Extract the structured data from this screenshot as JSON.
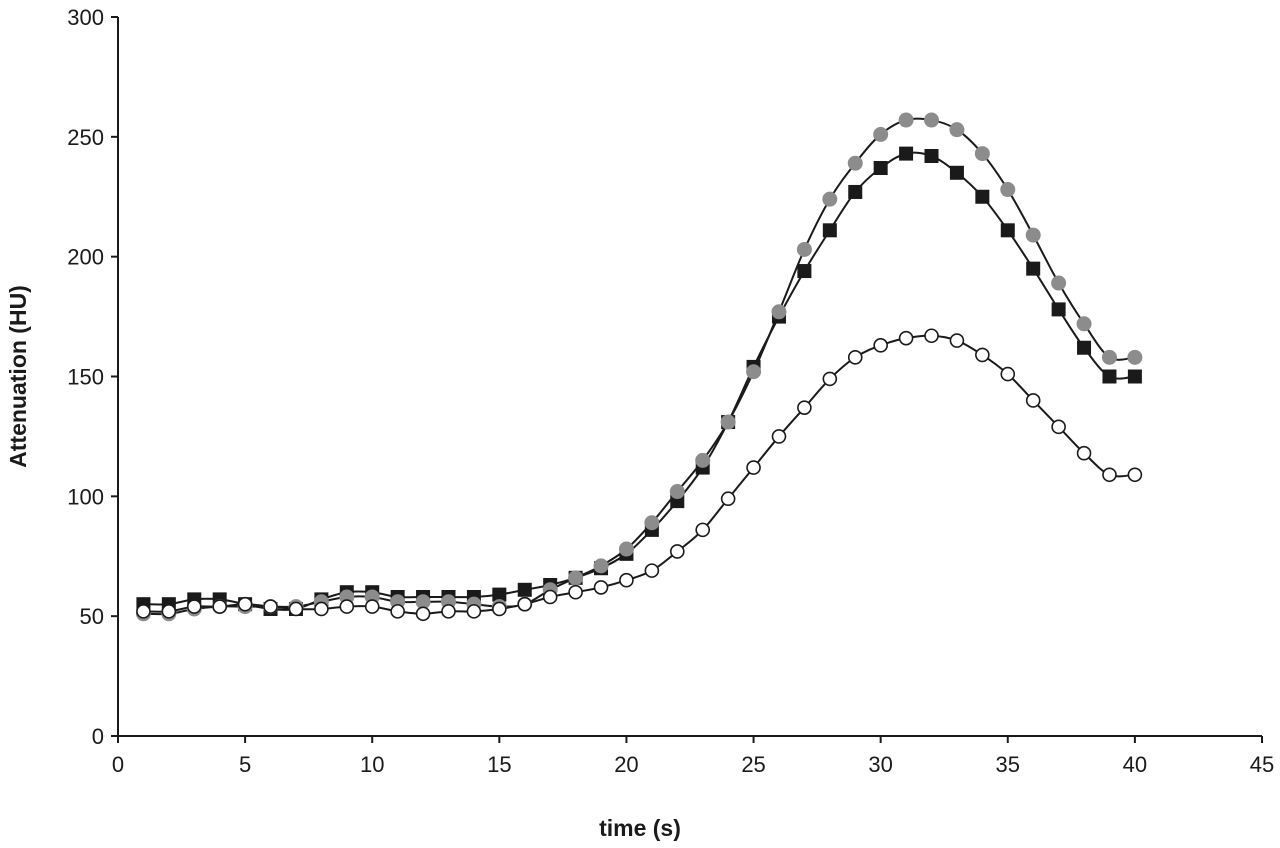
{
  "chart_data": {
    "type": "line",
    "title": "",
    "xlabel": "time  (s)",
    "ylabel": "Attenuation (HU)",
    "xlim": [
      0,
      45
    ],
    "ylim": [
      0,
      300
    ],
    "xticks": [
      0,
      5,
      10,
      15,
      20,
      25,
      30,
      35,
      40,
      45
    ],
    "yticks": [
      0,
      50,
      100,
      150,
      200,
      250,
      300
    ],
    "grid": false,
    "legend": "none",
    "x": [
      1,
      2,
      3,
      4,
      5,
      6,
      7,
      8,
      9,
      10,
      11,
      12,
      13,
      14,
      15,
      16,
      17,
      18,
      19,
      20,
      21,
      22,
      23,
      24,
      25,
      26,
      27,
      28,
      29,
      30,
      31,
      32,
      33,
      34,
      35,
      36,
      37,
      38,
      39,
      40
    ],
    "series": [
      {
        "marker": "filled-square",
        "color": "#1a1a1a",
        "values": [
          55,
          55,
          57,
          57,
          55,
          53,
          53,
          57,
          60,
          60,
          58,
          58,
          58,
          58,
          59,
          61,
          63,
          66,
          70,
          76,
          86,
          98,
          112,
          131,
          154,
          175,
          194,
          211,
          227,
          237,
          243,
          242,
          235,
          225,
          211,
          195,
          178,
          162,
          150,
          150
        ]
      },
      {
        "marker": "filled-circle-gray",
        "color": "#8c8c8c",
        "values": [
          51,
          51,
          53,
          54,
          54,
          54,
          54,
          56,
          58,
          58,
          56,
          56,
          56,
          55,
          54,
          55,
          61,
          66,
          71,
          78,
          89,
          102,
          115,
          131,
          152,
          177,
          203,
          224,
          239,
          251,
          257,
          257,
          253,
          243,
          228,
          209,
          189,
          172,
          158,
          158
        ]
      },
      {
        "marker": "open-circle",
        "color": "#ffffff",
        "values": [
          52,
          52,
          54,
          54,
          55,
          54,
          53,
          53,
          54,
          54,
          52,
          51,
          52,
          52,
          53,
          55,
          58,
          60,
          62,
          65,
          69,
          77,
          86,
          99,
          112,
          125,
          137,
          149,
          158,
          163,
          166,
          167,
          165,
          159,
          151,
          140,
          129,
          118,
          109,
          109
        ]
      }
    ]
  }
}
